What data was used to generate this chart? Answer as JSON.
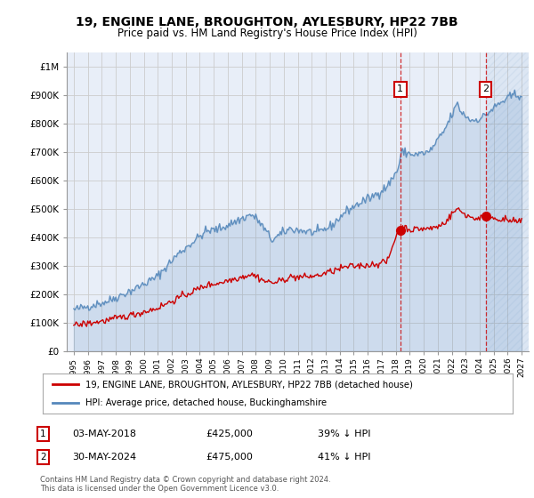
{
  "title": "19, ENGINE LANE, BROUGHTON, AYLESBURY, HP22 7BB",
  "subtitle": "Price paid vs. HM Land Registry's House Price Index (HPI)",
  "red_label": "19, ENGINE LANE, BROUGHTON, AYLESBURY, HP22 7BB (detached house)",
  "blue_label": "HPI: Average price, detached house, Buckinghamshire",
  "transaction1_date": "03-MAY-2018",
  "transaction1_price": 425000,
  "transaction1_pct": "39% ↓ HPI",
  "transaction2_date": "30-MAY-2024",
  "transaction2_price": 475000,
  "transaction2_pct": "41% ↓ HPI",
  "footer": "Contains HM Land Registry data © Crown copyright and database right 2024.\nThis data is licensed under the Open Government Licence v3.0.",
  "background_color": "#ffffff",
  "plot_bg_color": "#e8eef8",
  "grid_color": "#cccccc",
  "red_color": "#cc0000",
  "blue_color": "#5588bb",
  "marker1_year": 2018.33,
  "marker2_year": 2024.42,
  "xlim_left": 1994.5,
  "xlim_right": 2027.5,
  "ylim_bottom": 0,
  "ylim_top": 1050000
}
